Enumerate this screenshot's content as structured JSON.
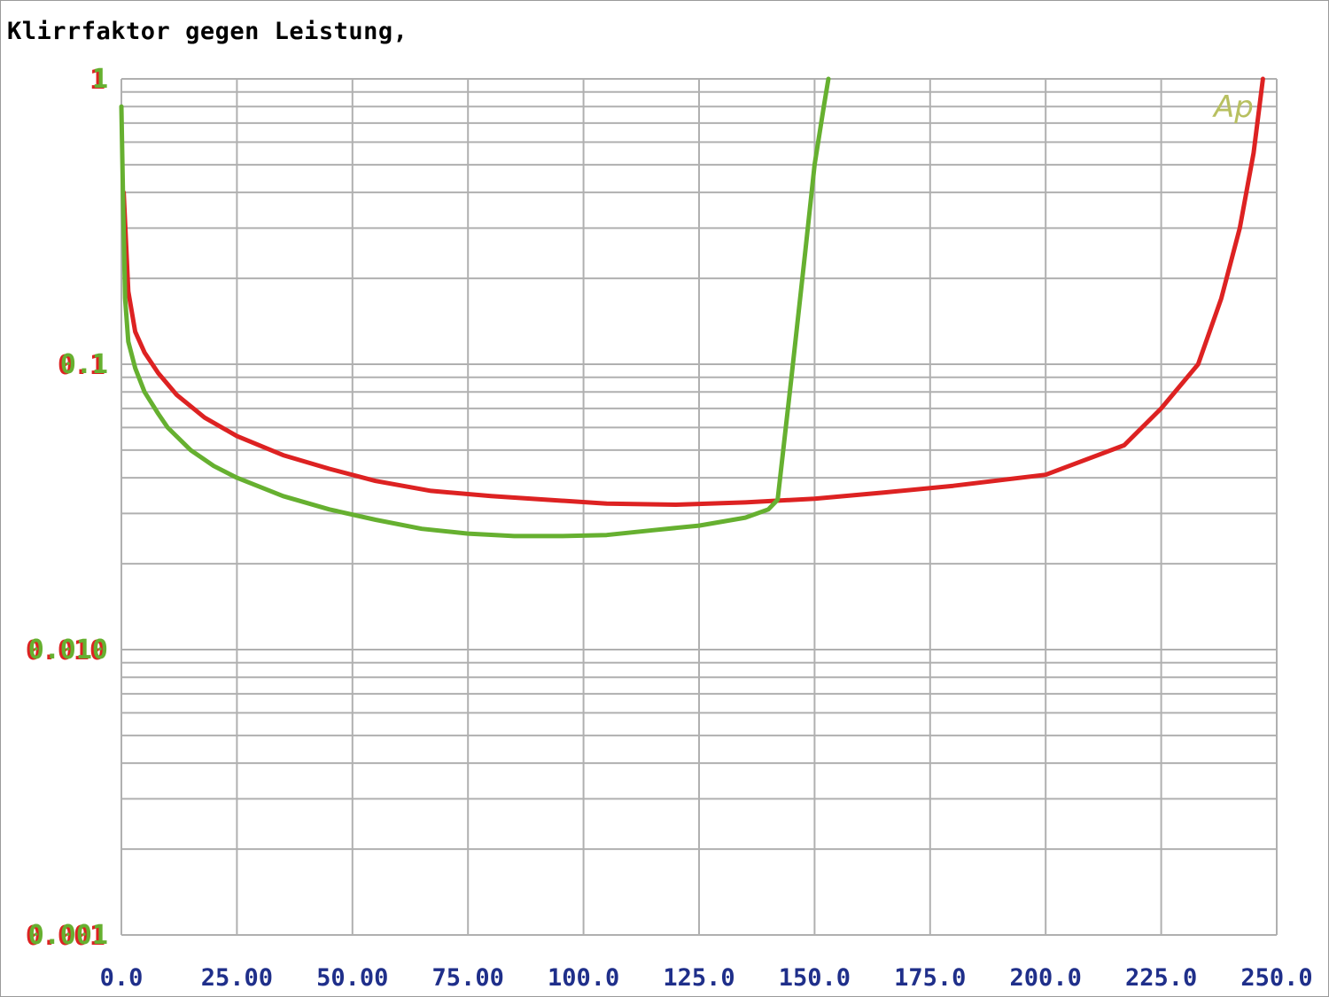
{
  "chart_data": {
    "type": "line",
    "title": "Klirrfaktor gegen Leistung,",
    "xlabel": "",
    "ylabel": "",
    "xlim": [
      0,
      250
    ],
    "ylim": [
      0.001,
      1
    ],
    "y_scale": "log",
    "grid": true,
    "x_ticks": [
      "0.0",
      "25.00",
      "50.00",
      "75.00",
      "100.0",
      "125.0",
      "150.0",
      "175.0",
      "200.0",
      "225.0",
      "250.0"
    ],
    "y_ticks": [
      {
        "value": 1,
        "label": "1"
      },
      {
        "value": 0.1,
        "label": "0.1"
      },
      {
        "value": 0.01,
        "label": "0.010"
      },
      {
        "value": 0.001,
        "label": "0.001"
      }
    ],
    "watermark": "Ap",
    "series": [
      {
        "color": "#dd2222",
        "x": [
          0.5,
          1.5,
          3,
          5,
          8,
          12,
          18,
          25,
          35,
          45,
          55,
          67,
          80,
          92,
          105,
          120,
          135,
          150,
          165,
          180,
          200,
          217,
          225,
          233,
          238,
          242,
          245,
          247
        ],
        "y": [
          0.4,
          0.18,
          0.13,
          0.11,
          0.093,
          0.078,
          0.065,
          0.056,
          0.048,
          0.043,
          0.039,
          0.036,
          0.0345,
          0.0335,
          0.0325,
          0.0322,
          0.0328,
          0.0338,
          0.0355,
          0.0375,
          0.041,
          0.052,
          0.07,
          0.1,
          0.17,
          0.3,
          0.55,
          1.0
        ]
      },
      {
        "color": "#66b030",
        "x": [
          0,
          0.4,
          0.8,
          1.5,
          3,
          5,
          8,
          10,
          15,
          20,
          25,
          35,
          45,
          55,
          65,
          75,
          85,
          95,
          105,
          115,
          125,
          135,
          140,
          142,
          145,
          148,
          150,
          152,
          153
        ],
        "y": [
          0.8,
          0.35,
          0.17,
          0.12,
          0.097,
          0.08,
          0.067,
          0.06,
          0.05,
          0.044,
          0.04,
          0.0345,
          0.031,
          0.0285,
          0.0265,
          0.0255,
          0.025,
          0.025,
          0.0252,
          0.0262,
          0.0272,
          0.029,
          0.031,
          0.0335,
          0.09,
          0.25,
          0.5,
          0.8,
          1.0
        ]
      }
    ]
  },
  "colors": {
    "grid": "#b0b0b0",
    "ytick": "#66b030",
    "ytick_shadow": "#dd2222",
    "xtick": "#1f2f8a",
    "watermark": "#b8c060"
  }
}
